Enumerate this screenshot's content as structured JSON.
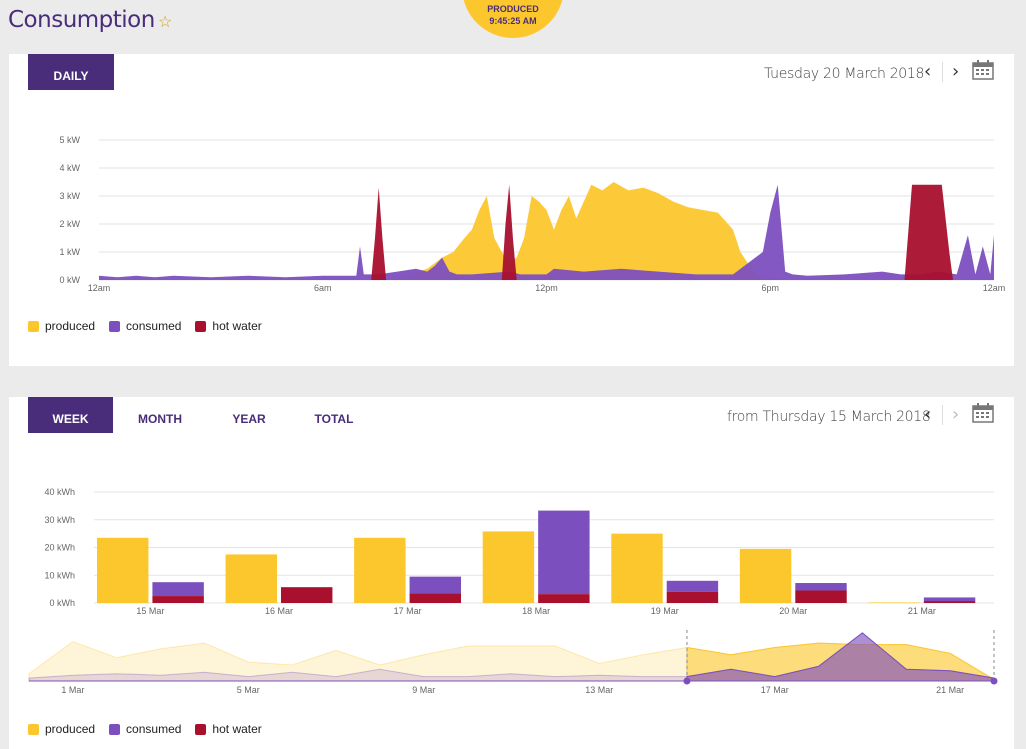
{
  "header": {
    "title": "Consumption",
    "badge_line1": "PRODUCED",
    "badge_line2": "9:45:25 AM"
  },
  "colors": {
    "produced": "#fcc72d",
    "consumed": "#7c4fbf",
    "hot_water": "#a8102e",
    "brand": "#4a2d7a"
  },
  "daily": {
    "tab_label": "DAILY",
    "date_label": "Tuesday 20 March 2018",
    "legend": [
      "produced",
      "consumed",
      "hot water"
    ]
  },
  "period": {
    "tabs": [
      "WEEK",
      "MONTH",
      "YEAR",
      "TOTAL"
    ],
    "date_label": "from Thursday 15 March 2018",
    "legend": [
      "produced",
      "consumed",
      "hot water"
    ]
  },
  "chart_data": [
    {
      "type": "area",
      "title": "",
      "xlabel": "",
      "ylabel": "",
      "x_ticks": [
        "12am",
        "6am",
        "12pm",
        "6pm",
        "12am"
      ],
      "y_ticks": [
        "0 kW",
        "1 kW",
        "2 kW",
        "3 kW",
        "4 kW",
        "5 kW"
      ],
      "ylim": [
        0,
        5
      ],
      "xlim": [
        0,
        24
      ],
      "grid": true,
      "legend_position": "bottom-left",
      "series": [
        {
          "name": "produced",
          "points": [
            [
              0,
              0
            ],
            [
              7.8,
              0
            ],
            [
              8.3,
              0.2
            ],
            [
              8.8,
              0.4
            ],
            [
              9.2,
              0.8
            ],
            [
              9.5,
              1.0
            ],
            [
              9.8,
              1.5
            ],
            [
              10.0,
              1.8
            ],
            [
              10.2,
              2.5
            ],
            [
              10.4,
              3.0
            ],
            [
              10.6,
              1.5
            ],
            [
              10.8,
              1.0
            ],
            [
              11.0,
              0.6
            ],
            [
              11.2,
              0.8
            ],
            [
              11.4,
              1.5
            ],
            [
              11.6,
              3.0
            ],
            [
              11.8,
              2.8
            ],
            [
              12.0,
              2.5
            ],
            [
              12.2,
              1.8
            ],
            [
              12.4,
              2.5
            ],
            [
              12.6,
              3.0
            ],
            [
              12.8,
              2.2
            ],
            [
              13.0,
              2.8
            ],
            [
              13.2,
              3.4
            ],
            [
              13.5,
              3.2
            ],
            [
              13.8,
              3.5
            ],
            [
              14.2,
              3.2
            ],
            [
              14.6,
              3.3
            ],
            [
              15.0,
              3.1
            ],
            [
              15.4,
              2.8
            ],
            [
              15.8,
              2.6
            ],
            [
              16.2,
              2.5
            ],
            [
              16.6,
              2.4
            ],
            [
              17.0,
              1.8
            ],
            [
              17.2,
              1.0
            ],
            [
              17.4,
              0.6
            ],
            [
              17.6,
              0.2
            ],
            [
              18.0,
              0.1
            ],
            [
              18.5,
              0
            ],
            [
              24,
              0
            ]
          ]
        },
        {
          "name": "consumed",
          "points": [
            [
              0,
              0.15
            ],
            [
              0.5,
              0.1
            ],
            [
              1.0,
              0.15
            ],
            [
              1.5,
              0.1
            ],
            [
              2.0,
              0.15
            ],
            [
              3.0,
              0.1
            ],
            [
              4.0,
              0.15
            ],
            [
              5.0,
              0.1
            ],
            [
              6.0,
              0.15
            ],
            [
              6.9,
              0.15
            ],
            [
              7.0,
              1.2
            ],
            [
              7.1,
              0.2
            ],
            [
              7.5,
              0.2
            ],
            [
              8.0,
              0.3
            ],
            [
              8.5,
              0.4
            ],
            [
              8.8,
              0.3
            ],
            [
              9.0,
              0.5
            ],
            [
              9.2,
              0.8
            ],
            [
              9.4,
              0.3
            ],
            [
              9.6,
              0.2
            ],
            [
              10.0,
              0.2
            ],
            [
              11.0,
              0.3
            ],
            [
              11.3,
              0.2
            ],
            [
              12.0,
              0.2
            ],
            [
              12.2,
              0.4
            ],
            [
              13.0,
              0.3
            ],
            [
              14.0,
              0.4
            ],
            [
              15.0,
              0.3
            ],
            [
              16.0,
              0.2
            ],
            [
              17.0,
              0.2
            ],
            [
              17.8,
              1.0
            ],
            [
              18.0,
              2.4
            ],
            [
              18.2,
              3.4
            ],
            [
              18.4,
              0.3
            ],
            [
              18.6,
              0.2
            ],
            [
              19.0,
              0.15
            ],
            [
              20.0,
              0.2
            ],
            [
              21.0,
              0.3
            ],
            [
              21.5,
              0.2
            ],
            [
              22.0,
              0.2
            ],
            [
              22.5,
              0.3
            ],
            [
              23.0,
              0.2
            ],
            [
              23.3,
              1.6
            ],
            [
              23.5,
              0.2
            ],
            [
              23.7,
              1.2
            ],
            [
              23.9,
              0.2
            ],
            [
              24,
              1.6
            ]
          ]
        },
        {
          "name": "hot water",
          "points": [
            [
              0,
              0
            ],
            [
              7.3,
              0
            ],
            [
              7.4,
              1.5
            ],
            [
              7.5,
              3.3
            ],
            [
              7.6,
              1.5
            ],
            [
              7.7,
              0
            ],
            [
              10.8,
              0
            ],
            [
              10.9,
              2.0
            ],
            [
              11.0,
              3.4
            ],
            [
              11.1,
              1.5
            ],
            [
              11.2,
              0
            ],
            [
              21.6,
              0
            ],
            [
              21.8,
              3.4
            ],
            [
              22.2,
              3.4
            ],
            [
              22.6,
              3.4
            ],
            [
              22.8,
              1.0
            ],
            [
              22.9,
              0
            ],
            [
              24,
              0
            ]
          ]
        }
      ]
    },
    {
      "type": "bar",
      "title": "",
      "xlabel": "",
      "ylabel": "",
      "categories": [
        "15 Mar",
        "16 Mar",
        "17 Mar",
        "18 Mar",
        "19 Mar",
        "20 Mar",
        "21 Mar"
      ],
      "y_ticks": [
        "0 kWh",
        "10 kWh",
        "20 kWh",
        "30 kWh",
        "40 kWh"
      ],
      "ylim": [
        0,
        40
      ],
      "grid": true,
      "legend_position": "bottom-left",
      "series": [
        {
          "name": "produced",
          "values": [
            23.5,
            17.5,
            23.5,
            25.8,
            25.0,
            19.5,
            0.2
          ]
        },
        {
          "name": "consumed",
          "values": [
            7.5,
            0,
            9.5,
            33.3,
            8.0,
            7.2,
            2.0
          ]
        },
        {
          "name": "hot water",
          "values": [
            2.5,
            5.7,
            3.5,
            3.2,
            4.0,
            4.5,
            0.7
          ]
        }
      ]
    },
    {
      "type": "area",
      "title": "",
      "x_ticks": [
        "1 Mar",
        "5 Mar",
        "9 Mar",
        "13 Mar",
        "17 Mar",
        "21 Mar"
      ],
      "xlim": [
        0,
        22
      ],
      "ylim": [
        0,
        35
      ],
      "selection": [
        "15 Mar",
        "21 Mar"
      ],
      "series": [
        {
          "name": "produced",
          "values": [
            5,
            27,
            16,
            22,
            26,
            13,
            11,
            21,
            11,
            18,
            24,
            24,
            24,
            12,
            18,
            23,
            18,
            23,
            26,
            25,
            25,
            19,
            1
          ]
        },
        {
          "name": "consumed",
          "values": [
            2,
            4,
            5,
            4,
            6,
            3,
            6,
            3,
            8,
            3,
            3,
            5,
            3,
            4,
            3,
            3,
            8,
            3,
            10,
            33,
            8,
            7,
            2
          ]
        }
      ]
    }
  ]
}
